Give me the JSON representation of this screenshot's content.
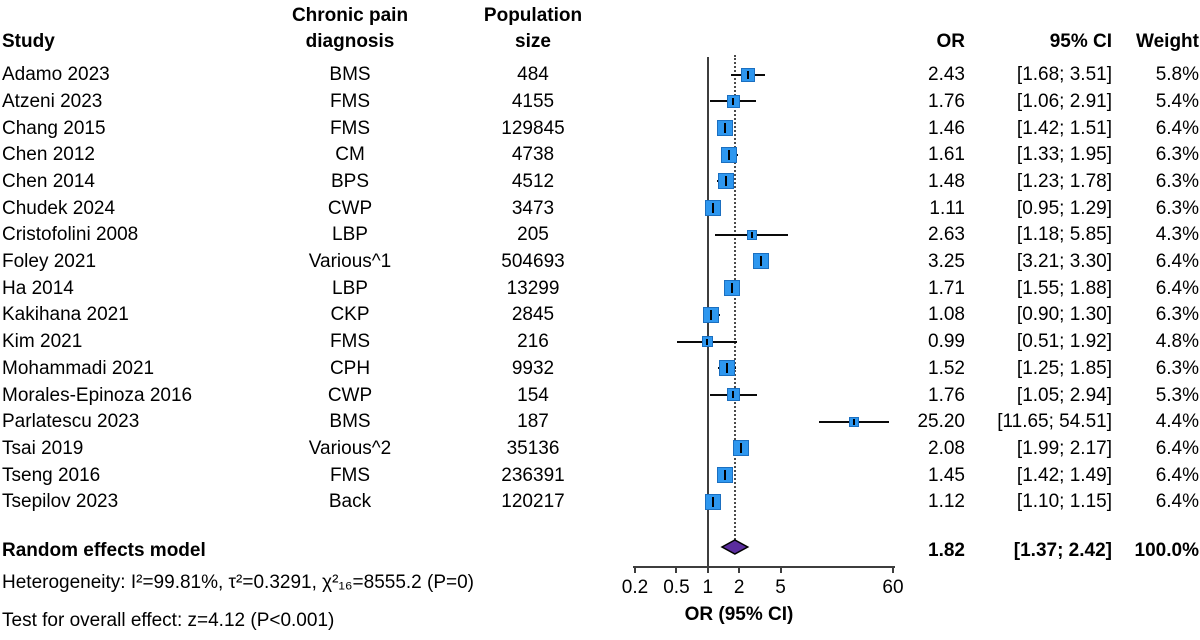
{
  "chart_data": {
    "type": "forest",
    "headers": {
      "study": "Study",
      "diagnosis_line1": "Chronic pain",
      "diagnosis_line2": "diagnosis",
      "population_line1": "Population",
      "population_line2": "size",
      "or": "OR",
      "ci": "95% CI",
      "weight": "Weight"
    },
    "studies": [
      {
        "study": "Adamo 2023",
        "diagnosis": "BMS",
        "population": "484",
        "or": 2.43,
        "ci_low": 1.68,
        "ci_high": 3.51,
        "or_text": "2.43",
        "ci_text": "[1.68; 3.51]",
        "weight": "5.8%"
      },
      {
        "study": "Atzeni 2023",
        "diagnosis": "FMS",
        "population": "4155",
        "or": 1.76,
        "ci_low": 1.06,
        "ci_high": 2.91,
        "or_text": "1.76",
        "ci_text": "[1.06; 2.91]",
        "weight": "5.4%"
      },
      {
        "study": "Chang 2015",
        "diagnosis": "FMS",
        "population": "129845",
        "or": 1.46,
        "ci_low": 1.42,
        "ci_high": 1.51,
        "or_text": "1.46",
        "ci_text": "[1.42; 1.51]",
        "weight": "6.4%"
      },
      {
        "study": "Chen 2012",
        "diagnosis": "CM",
        "population": "4738",
        "or": 1.61,
        "ci_low": 1.33,
        "ci_high": 1.95,
        "or_text": "1.61",
        "ci_text": "[1.33; 1.95]",
        "weight": "6.3%"
      },
      {
        "study": "Chen 2014",
        "diagnosis": "BPS",
        "population": "4512",
        "or": 1.48,
        "ci_low": 1.23,
        "ci_high": 1.78,
        "or_text": "1.48",
        "ci_text": "[1.23; 1.78]",
        "weight": "6.3%"
      },
      {
        "study": "Chudek 2024",
        "diagnosis": "CWP",
        "population": "3473",
        "or": 1.11,
        "ci_low": 0.95,
        "ci_high": 1.29,
        "or_text": "1.11",
        "ci_text": "[0.95; 1.29]",
        "weight": "6.3%"
      },
      {
        "study": "Cristofolini 2008",
        "diagnosis": "LBP",
        "population": "205",
        "or": 2.63,
        "ci_low": 1.18,
        "ci_high": 5.85,
        "or_text": "2.63",
        "ci_text": "[1.18; 5.85]",
        "weight": "4.3%"
      },
      {
        "study": "Foley 2021",
        "diagnosis": "Various^1",
        "population": "504693",
        "or": 3.25,
        "ci_low": 3.21,
        "ci_high": 3.3,
        "or_text": "3.25",
        "ci_text": "[3.21; 3.30]",
        "weight": "6.4%"
      },
      {
        "study": "Ha 2014",
        "diagnosis": "LBP",
        "population": "13299",
        "or": 1.71,
        "ci_low": 1.55,
        "ci_high": 1.88,
        "or_text": "1.71",
        "ci_text": "[1.55; 1.88]",
        "weight": "6.4%"
      },
      {
        "study": "Kakihana 2021",
        "diagnosis": "CKP",
        "population": "2845",
        "or": 1.08,
        "ci_low": 0.9,
        "ci_high": 1.3,
        "or_text": "1.08",
        "ci_text": "[0.90; 1.30]",
        "weight": "6.3%"
      },
      {
        "study": "Kim 2021",
        "diagnosis": "FMS",
        "population": "216",
        "or": 0.99,
        "ci_low": 0.51,
        "ci_high": 1.92,
        "or_text": "0.99",
        "ci_text": "[0.51; 1.92]",
        "weight": "4.8%"
      },
      {
        "study": "Mohammadi 2021",
        "diagnosis": "CPH",
        "population": "9932",
        "or": 1.52,
        "ci_low": 1.25,
        "ci_high": 1.85,
        "or_text": "1.52",
        "ci_text": "[1.25; 1.85]",
        "weight": "6.3%"
      },
      {
        "study": "Morales-Epinoza 2016",
        "diagnosis": "CWP",
        "population": "154",
        "or": 1.76,
        "ci_low": 1.05,
        "ci_high": 2.94,
        "or_text": "1.76",
        "ci_text": "[1.05; 2.94]",
        "weight": "5.3%"
      },
      {
        "study": "Parlatescu 2023",
        "diagnosis": "BMS",
        "population": "187",
        "or": 25.2,
        "ci_low": 11.65,
        "ci_high": 54.51,
        "or_text": "25.20",
        "ci_text": "[11.65; 54.51]",
        "weight": "4.4%"
      },
      {
        "study": "Tsai 2019",
        "diagnosis": "Various^2",
        "population": "35136",
        "or": 2.08,
        "ci_low": 1.99,
        "ci_high": 2.17,
        "or_text": "2.08",
        "ci_text": "[1.99; 2.17]",
        "weight": "6.4%"
      },
      {
        "study": "Tseng 2016",
        "diagnosis": "FMS",
        "population": "236391",
        "or": 1.45,
        "ci_low": 1.42,
        "ci_high": 1.49,
        "or_text": "1.45",
        "ci_text": "[1.42; 1.49]",
        "weight": "6.4%"
      },
      {
        "study": "Tsepilov 2023",
        "diagnosis": "Back",
        "population": "120217",
        "or": 1.12,
        "ci_low": 1.1,
        "ci_high": 1.15,
        "or_text": "1.12",
        "ci_text": "[1.10; 1.15]",
        "weight": "6.4%"
      }
    ],
    "summary": {
      "label": "Random effects model",
      "or": 1.82,
      "ci_low": 1.37,
      "ci_high": 2.42,
      "or_text": "1.82",
      "ci_text": "[1.37; 2.42]",
      "weight": "100.0%"
    },
    "footnotes": {
      "heterogeneity": "Heterogeneity: I²=99.81%, τ²=0.3291, χ²₁₆=8555.2 (P=0)",
      "overall_test": "Test for overall effect: z=4.12 (P<0.001)"
    },
    "axis": {
      "scale": "log",
      "ticks": [
        0.2,
        0.5,
        1,
        2,
        5,
        60
      ],
      "tick_labels": [
        "0.2",
        "0.5",
        "1",
        "2",
        "5",
        "60"
      ],
      "label": "OR (95% CI)",
      "ref_line": 1,
      "summary_ref_line": 1.82
    },
    "colors": {
      "square_fill": "#2e97ef",
      "square_border": "#1b6fc0",
      "diamond_fill": "#5b2d9e",
      "diamond_border": "#000000",
      "ci_line": "#0a0a0a",
      "axis_line": "#3d3d3d",
      "text": "#000000"
    }
  }
}
